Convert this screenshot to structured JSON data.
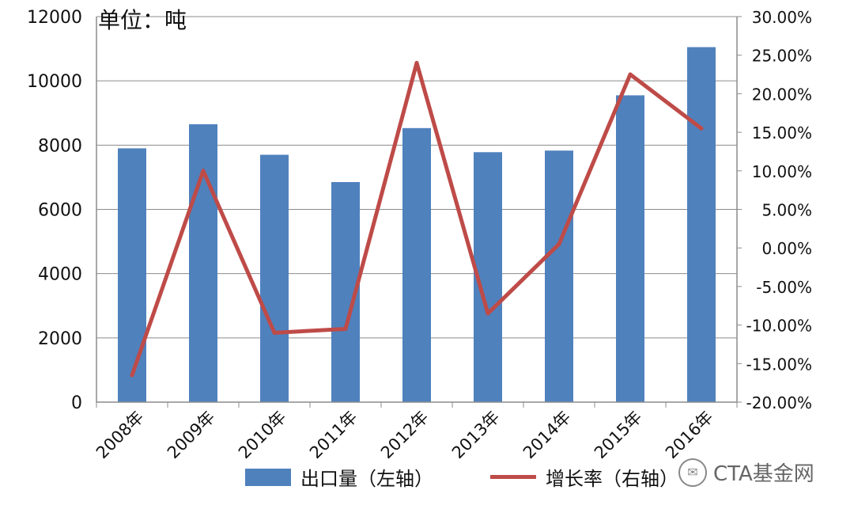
{
  "unit_label": "单位：吨",
  "legend": {
    "bar_label": "出口量（左轴）",
    "line_label": "增长率（右轴）"
  },
  "watermark": "CTA基金网",
  "colors": {
    "bar": "#4f81bd",
    "line": "#be4b48",
    "grid": "#8c8c8c",
    "text": "#111111"
  },
  "chart_data": {
    "type": "bar",
    "categories": [
      "2008年",
      "2009年",
      "2010年",
      "2011年",
      "2012年",
      "2013年",
      "2014年",
      "2015年",
      "2016年"
    ],
    "series": [
      {
        "name": "出口量（左轴）",
        "type": "bar",
        "axis": "left",
        "values": [
          7900,
          8650,
          7700,
          6850,
          8530,
          7780,
          7830,
          9550,
          11050
        ]
      },
      {
        "name": "增长率（右轴）",
        "type": "line",
        "axis": "right",
        "values": [
          -16.5,
          10.0,
          -11.0,
          -10.5,
          24.0,
          -8.5,
          0.5,
          22.5,
          15.5
        ]
      }
    ],
    "ylim_left": [
      0,
      12000
    ],
    "yticks_left": [
      "0",
      "2000",
      "4000",
      "6000",
      "8000",
      "10000",
      "12000"
    ],
    "ylim_right": [
      -20,
      30
    ],
    "yticks_right": [
      "-20.00%",
      "-15.00%",
      "-10.00%",
      "-5.00%",
      "0.00%",
      "5.00%",
      "10.00%",
      "15.00%",
      "20.00%",
      "25.00%",
      "30.00%"
    ],
    "grid": true,
    "legend_position": "bottom"
  }
}
